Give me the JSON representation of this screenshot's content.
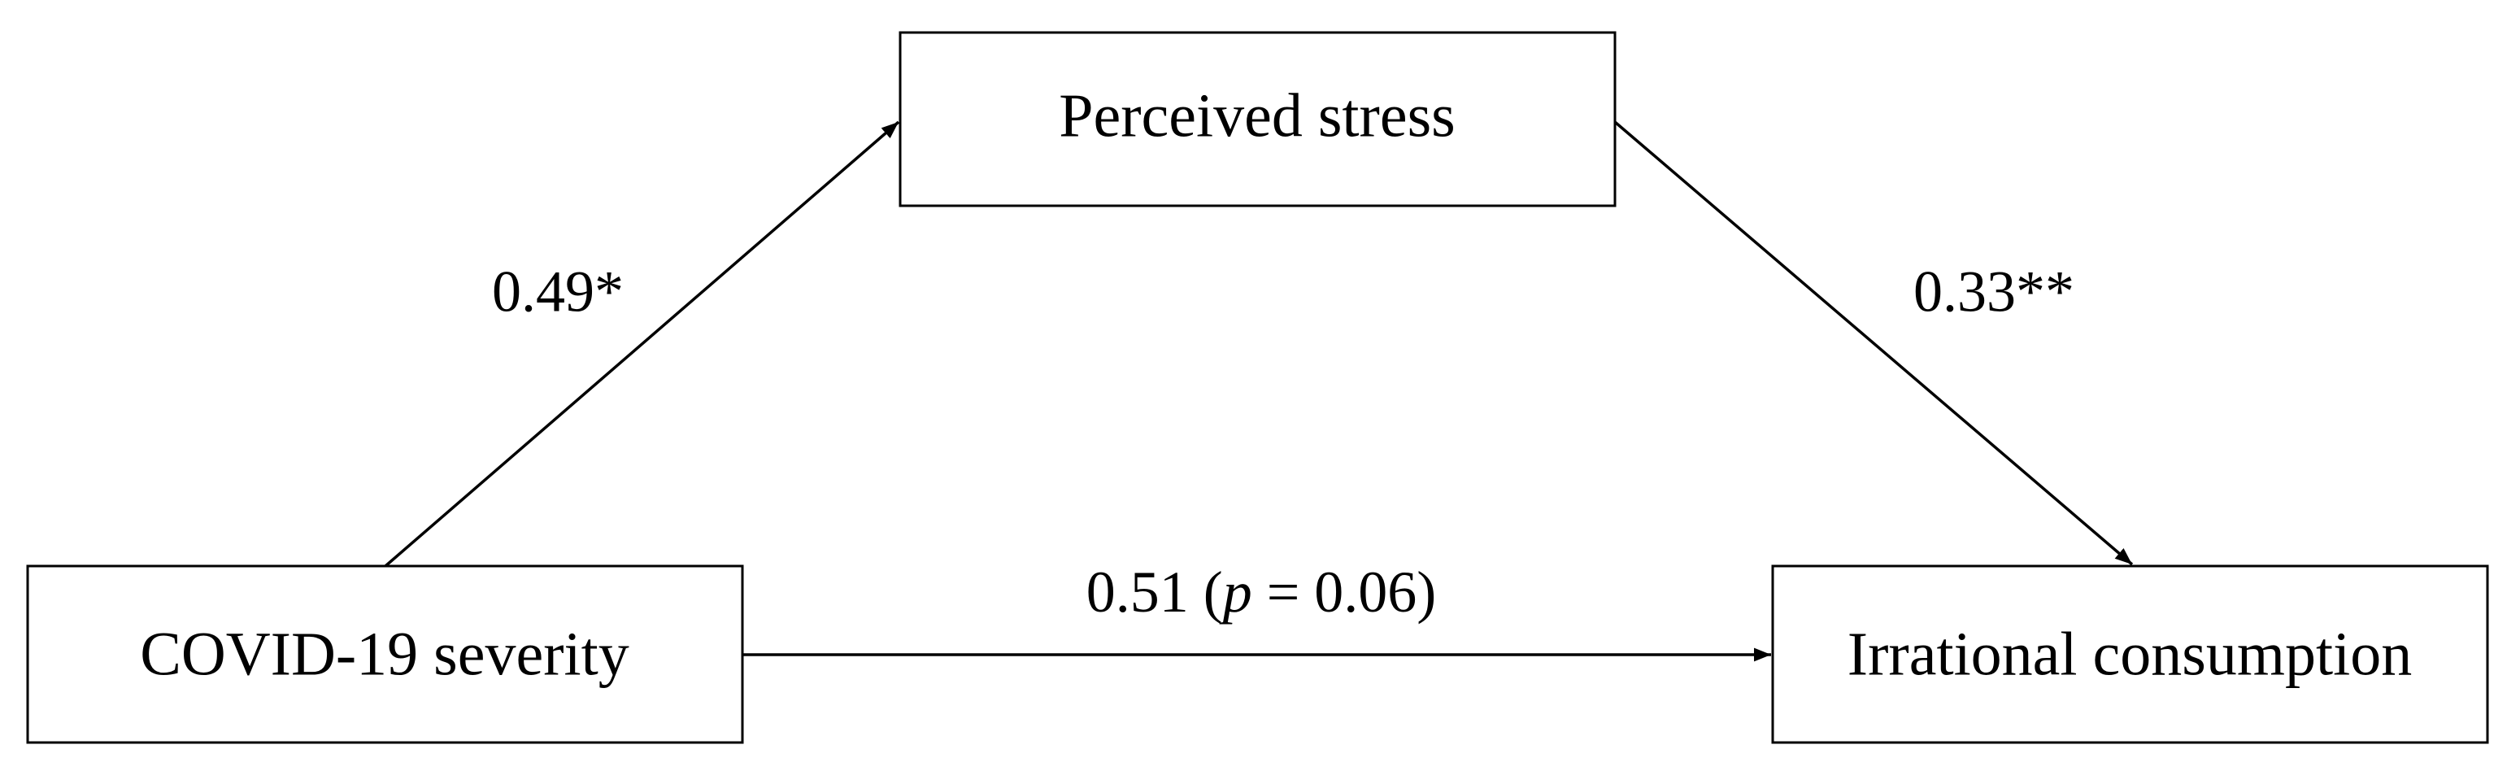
{
  "nodes": [
    {
      "label": "Perceived stress"
    },
    {
      "label": "COVID-19 severity"
    },
    {
      "label": "Irrational consumption"
    }
  ],
  "edges": [
    {
      "label": "0.49*"
    },
    {
      "label": "0.33**"
    },
    {
      "label_parts": [
        "0.51 (",
        "p",
        " = 0.06)"
      ]
    }
  ]
}
